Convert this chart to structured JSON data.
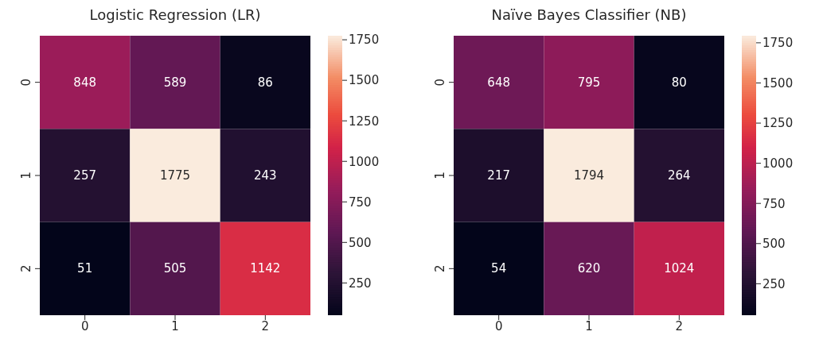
{
  "chart_data": [
    {
      "type": "heatmap",
      "title": "Logistic Regression (LR)",
      "categories": [
        "0",
        "1",
        "2"
      ],
      "y_categories": [
        "0",
        "1",
        "2"
      ],
      "cells": [
        [
          848,
          589,
          86
        ],
        [
          257,
          1775,
          243
        ],
        [
          51,
          505,
          1142
        ]
      ],
      "clim": [
        51,
        1775
      ],
      "cticks": [
        250,
        500,
        750,
        1000,
        1250,
        1500,
        1750
      ],
      "data_labels": true
    },
    {
      "type": "heatmap",
      "title": "Naïve Bayes Classifier (NB)",
      "categories": [
        "0",
        "1",
        "2"
      ],
      "y_categories": [
        "0",
        "1",
        "2"
      ],
      "cells": [
        [
          648,
          795,
          80
        ],
        [
          217,
          1794,
          264
        ],
        [
          54,
          620,
          1024
        ]
      ],
      "clim": [
        54,
        1794
      ],
      "cticks": [
        250,
        500,
        750,
        1000,
        1250,
        1500,
        1750
      ],
      "data_labels": true
    }
  ]
}
